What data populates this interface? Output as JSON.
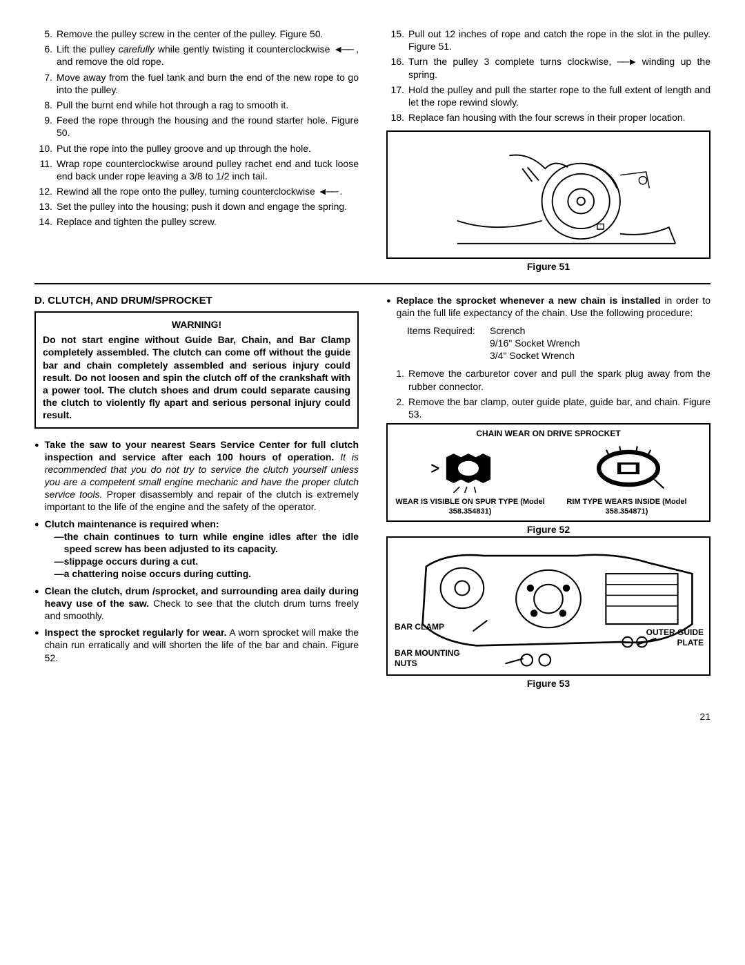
{
  "steps_left": [
    {
      "n": "5.",
      "t": "Remove the pulley screw in the center of the pulley. Figure 50."
    },
    {
      "n": "6.",
      "t": "Lift the pulley <span class='italic'>carefully</span> while gently twisting it counterclockwise <span class='arrow-left'></span> , and remove the old rope."
    },
    {
      "n": "7.",
      "t": "Move away from the fuel tank and burn the end of the new rope to go into the pulley."
    },
    {
      "n": "8.",
      "t": "Pull the burnt end while hot through a rag to smooth it."
    },
    {
      "n": "9.",
      "t": "Feed the rope through the housing and the round starter hole. Figure 50."
    },
    {
      "n": "10.",
      "t": "Put the rope into the pulley groove and up through the hole."
    },
    {
      "n": "11.",
      "t": "Wrap rope counterclockwise around pulley rachet end and tuck loose end back under rope leaving a 3/8 to 1/2 inch tail."
    },
    {
      "n": "12.",
      "t": "Rewind all the rope onto the pulley, turning counterclockwise <span class='arrow-left'></span> ."
    },
    {
      "n": "13.",
      "t": "Set the pulley into the housing; push it down and engage the spring."
    },
    {
      "n": "14.",
      "t": "Replace and tighten the pulley screw."
    }
  ],
  "steps_right": [
    {
      "n": "15.",
      "t": "Pull out 12 inches of rope and catch the rope in the slot in the pulley. Figure 51."
    },
    {
      "n": "16.",
      "t": "Turn the pulley 3 complete turns clockwise, <span class='arrow-right'></span> winding up the spring."
    },
    {
      "n": "17.",
      "t": "Hold the pulley and pull the starter rope to the full extent of length and let the rope rewind slowly."
    },
    {
      "n": "18.",
      "t": "Replace fan housing with the four screws in their proper location."
    }
  ],
  "fig51_caption": "Figure 51",
  "section_d": "D.  CLUTCH, AND DRUM/SPROCKET",
  "warning_title": "WARNING!",
  "warning_body": "Do not start engine without Guide Bar, Chain, and Bar Clamp completely assembled. The clutch can come off without the guide bar and chain completely assembled and serious injury could result. Do not loosen and spin the clutch off of the crankshaft with a power tool. The clutch shoes and drum could separate causing the clutch to violently fly apart and serious personal injury could result.",
  "bullets_left": [
    "<span class='bold'>Take the saw to your nearest Sears Service Center for full clutch inspection and service after each 100 hours of operation.</span> <span class='italic'>It is recommended that you do not try to service the clutch yourself unless you are a competent small engine mechanic and have the proper clutch service tools.</span> Proper disassembly and repair of the clutch is extremely important to the life of the engine and the safety of the operator.",
    "<span class='bold'>Clutch maintenance is required when:</span><div class='sub-dash'><div>—the chain continues to turn while engine idles after the idle speed screw has been adjusted to its capacity.</div><div>—slippage occurs during a cut.</div><div>—a chattering noise occurs during cutting.</div></div>",
    "<span class='bold'>Clean the clutch, drum /sprocket, and surrounding area daily during heavy use of the saw.</span> Check to see that the clutch drum turns freely and smoothly.",
    "<span class='bold'>Inspect the sprocket regularly for wear.</span> A worn sprocket will make the chain run erratically and will shorten the life of the bar and chain. Figure 52."
  ],
  "bullet_right": "<span class='bold'>Replace the sprocket whenever a new chain is installed</span> in order to gain the full life expectancy of the chain. Use the following procedure:",
  "items_required_label": "Items Required:",
  "items_required_list": [
    "Scrench",
    "9/16\" Socket Wrench",
    "3/4\" Socket Wrench"
  ],
  "steps_right2": [
    {
      "n": "1.",
      "t": "Remove the carburetor cover and pull the spark plug away from the rubber connector."
    },
    {
      "n": "2.",
      "t": "Remove the bar clamp, outer guide plate, guide bar, and chain. Figure 53."
    }
  ],
  "fig52_title": "CHAIN WEAR ON DRIVE SPROCKET",
  "fig52_left_label": "WEAR IS VISIBLE ON SPUR TYPE (Model 358.354831)",
  "fig52_right_label": "RIM TYPE WEARS INSIDE (Model 358.354871)",
  "fig52_caption": "Figure 52",
  "fig53_labels": {
    "bar_clamp": "BAR CLAMP",
    "bar_nuts": "BAR MOUNTING NUTS",
    "outer_plate": "OUTER GUIDE PLATE"
  },
  "fig53_caption": "Figure 53",
  "page_number": "21"
}
